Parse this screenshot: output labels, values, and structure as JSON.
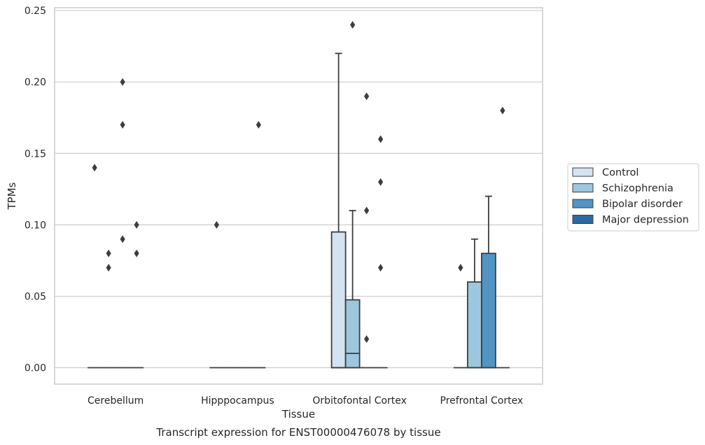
{
  "colors": {
    "control": "#d4e3f1",
    "schizophrenia": "#9dc7de",
    "bipolar": "#5294c3",
    "depression": "#2a69a3",
    "grid": "#cccccc",
    "frame": "#cccccc",
    "line": "#3d3d3d"
  },
  "chart_data": {
    "type": "boxplot",
    "title": "",
    "caption": "Transcript expression for ENST00000476078 by tissue",
    "xlabel": "Tissue",
    "ylabel": "TPMs",
    "ylim": [
      -0.0115,
      0.252
    ],
    "yticks": [
      "0.00",
      "0.05",
      "0.10",
      "0.15",
      "0.20",
      "0.25"
    ],
    "grid": "horizontal",
    "legend_position": "right",
    "categories": [
      "Cerebellum",
      "Hipppocampus",
      "Orbitofontal Cortex",
      "Prefrontal Cortex"
    ],
    "series": [
      {
        "name": "Control",
        "boxes": [
          {
            "q1": 0,
            "median": 0,
            "q3": 0,
            "whisker_low": 0,
            "whisker_high": 0,
            "outliers": [
              0.14
            ]
          },
          {
            "q1": 0,
            "median": 0,
            "q3": 0,
            "whisker_low": 0,
            "whisker_high": 0,
            "outliers": [
              0.1
            ]
          },
          {
            "q1": 0,
            "median": 0,
            "q3": 0.095,
            "whisker_low": 0,
            "whisker_high": 0.22,
            "outliers": []
          },
          {
            "q1": 0,
            "median": 0,
            "q3": 0,
            "whisker_low": 0,
            "whisker_high": 0,
            "outliers": [
              0.07
            ]
          }
        ]
      },
      {
        "name": "Schizophrenia",
        "boxes": [
          {
            "q1": 0,
            "median": 0,
            "q3": 0,
            "whisker_low": 0,
            "whisker_high": 0,
            "outliers": [
              0.07,
              0.08
            ]
          },
          {
            "q1": 0,
            "median": 0,
            "q3": 0,
            "whisker_low": 0,
            "whisker_high": 0,
            "outliers": []
          },
          {
            "q1": 0,
            "median": 0.01,
            "q3": 0.0475,
            "whisker_low": 0,
            "whisker_high": 0.11,
            "outliers": [
              0.24
            ]
          },
          {
            "q1": 0,
            "median": 0,
            "q3": 0.06,
            "whisker_low": 0,
            "whisker_high": 0.09,
            "outliers": []
          }
        ]
      },
      {
        "name": "Bipolar disorder",
        "boxes": [
          {
            "q1": 0,
            "median": 0,
            "q3": 0,
            "whisker_low": 0,
            "whisker_high": 0,
            "outliers": [
              0.09,
              0.17,
              0.2
            ]
          },
          {
            "q1": 0,
            "median": 0,
            "q3": 0,
            "whisker_low": 0,
            "whisker_high": 0,
            "outliers": []
          },
          {
            "q1": 0,
            "median": 0,
            "q3": 0,
            "whisker_low": 0,
            "whisker_high": 0,
            "outliers": [
              0.02,
              0.11,
              0.19
            ]
          },
          {
            "q1": 0,
            "median": 0,
            "q3": 0.08,
            "whisker_low": 0,
            "whisker_high": 0.12,
            "outliers": []
          }
        ]
      },
      {
        "name": "Major depression",
        "boxes": [
          {
            "q1": 0,
            "median": 0,
            "q3": 0,
            "whisker_low": 0,
            "whisker_high": 0,
            "outliers": [
              0.08,
              0.1
            ]
          },
          {
            "q1": 0,
            "median": 0,
            "q3": 0,
            "whisker_low": 0,
            "whisker_high": 0,
            "outliers": [
              0.17
            ]
          },
          {
            "q1": 0,
            "median": 0,
            "q3": 0,
            "whisker_low": 0,
            "whisker_high": 0,
            "outliers": [
              0.07,
              0.13,
              0.16
            ]
          },
          {
            "q1": 0,
            "median": 0,
            "q3": 0,
            "whisker_low": 0,
            "whisker_high": 0,
            "outliers": [
              0.18
            ]
          }
        ]
      }
    ]
  }
}
